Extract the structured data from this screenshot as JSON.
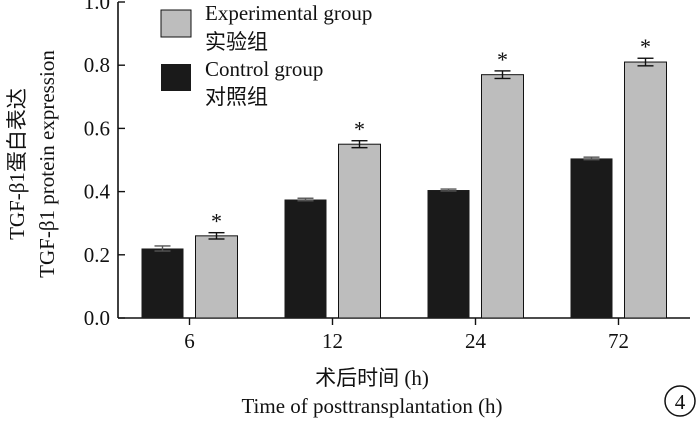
{
  "chart_data": {
    "type": "bar",
    "panel_label": "4",
    "categories": [
      "6",
      "12",
      "24",
      "72"
    ],
    "series": [
      {
        "name": "Control group",
        "name_cn": "对照组",
        "color": "#1a1a1a",
        "values": [
          0.22,
          0.375,
          0.405,
          0.505
        ],
        "errors": [
          0.008,
          0.004,
          0.003,
          0.004
        ],
        "significance": [
          "",
          "",
          "",
          ""
        ]
      },
      {
        "name": "Experimental group",
        "name_cn": "实验组",
        "color": "#bdbdbd",
        "values": [
          0.26,
          0.55,
          0.77,
          0.81
        ],
        "errors": [
          0.01,
          0.011,
          0.012,
          0.012
        ],
        "significance": [
          "*",
          "*",
          "*",
          "*"
        ]
      }
    ],
    "ylabel_cn": "TGF-β1蛋白表达",
    "ylabel": "TGF-β1 protein expression",
    "xlabel_cn": "术后时间 (h)",
    "xlabel": "Time of posttransplantation (h)",
    "ylim": [
      0,
      1.0
    ],
    "yticks": [
      "0.0",
      "0.2",
      "0.4",
      "0.6",
      "0.8",
      "1.0"
    ],
    "grid": false,
    "legend_position": "top-left"
  }
}
